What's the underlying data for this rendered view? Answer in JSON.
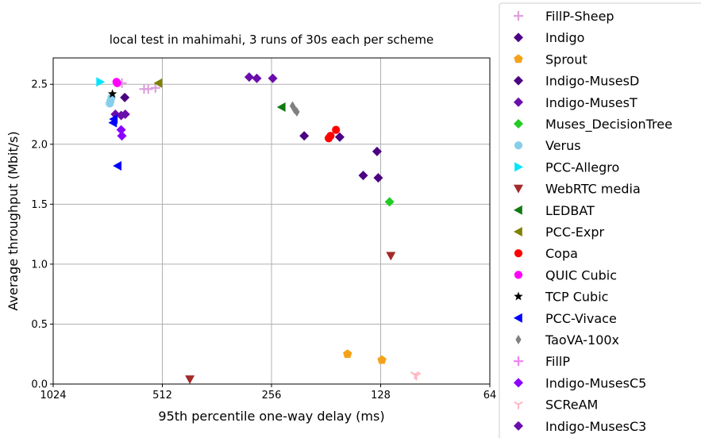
{
  "chart_data": {
    "type": "scatter",
    "title": "local test in mahimahi, 3 runs of 30s each per scheme",
    "xlabel": "95th percentile one-way delay (ms)",
    "ylabel": "Average throughput (Mbit/s)",
    "x_scale": "log2-reversed",
    "xlim": [
      1024,
      64
    ],
    "ylim": [
      0,
      2.72
    ],
    "x_ticks": [
      1024,
      512,
      256,
      128,
      64
    ],
    "x_tick_labels": [
      "1024",
      "512",
      "256",
      "128",
      "64"
    ],
    "y_ticks": [
      0.0,
      0.5,
      1.0,
      1.5,
      2.0,
      2.5
    ],
    "y_tick_labels": [
      "0.0",
      "0.5",
      "1.0",
      "1.5",
      "2.0",
      "2.5"
    ],
    "grid": true,
    "legend_position": "outside-right",
    "series": [
      {
        "name": "FillP-Sheep",
        "color": "#dda0dd",
        "marker": "plus",
        "points": [
          [
            575,
            2.46
          ],
          [
            560,
            2.46
          ],
          [
            535,
            2.47
          ],
          [
            662,
            2.51
          ]
        ]
      },
      {
        "name": "Indigo",
        "color": "#4b0082",
        "marker": "diamond",
        "points": [
          [
            650,
            2.39
          ]
        ]
      },
      {
        "name": "Sprout",
        "color": "#f5a21b",
        "marker": "pentagon",
        "points": [
          [
            158,
            0.25
          ],
          [
            127,
            0.2
          ]
        ]
      },
      {
        "name": "Indigo-MusesD",
        "color": "#4b0082",
        "marker": "diamond",
        "points": [
          [
            208,
            2.07
          ],
          [
            166,
            2.06
          ],
          [
            143,
            1.74
          ],
          [
            131,
            1.94
          ],
          [
            130,
            1.72
          ]
        ]
      },
      {
        "name": "Indigo-MusesT",
        "color": "#6a0dad",
        "marker": "diamond",
        "points": [
          [
            295,
            2.56
          ],
          [
            281,
            2.55
          ],
          [
            254,
            2.55
          ],
          [
            690,
            2.25
          ],
          [
            665,
            2.24
          ],
          [
            648,
            2.25
          ]
        ]
      },
      {
        "name": "Muses_DecisionTree",
        "color": "#22cc22",
        "marker": "diamond",
        "points": [
          [
            121,
            1.52
          ]
        ]
      },
      {
        "name": "Verus",
        "color": "#87ceeb",
        "marker": "circle",
        "points": [
          [
            715,
            2.34
          ],
          [
            712,
            2.36
          ],
          [
            707,
            2.39
          ]
        ]
      },
      {
        "name": "PCC-Allegro",
        "color": "#00e5ff",
        "marker": "triangle-right",
        "points": [
          [
            760,
            2.52
          ]
        ]
      },
      {
        "name": "WebRTC media",
        "color": "#a52a2a",
        "marker": "triangle-down",
        "points": [
          [
            430,
            0.04
          ],
          [
            120,
            1.07
          ]
        ]
      },
      {
        "name": "LEDBAT",
        "color": "#127a12",
        "marker": "triangle-left",
        "points": [
          [
            240,
            2.31
          ]
        ]
      },
      {
        "name": "PCC-Expr",
        "color": "#808000",
        "marker": "triangle-left",
        "points": [
          [
            525,
            2.51
          ]
        ]
      },
      {
        "name": "Copa",
        "color": "#ff0000",
        "marker": "circle",
        "points": [
          [
            178,
            2.05
          ],
          [
            176,
            2.07
          ],
          [
            170,
            2.12
          ]
        ]
      },
      {
        "name": "QUIC Cubic",
        "color": "#ff00ff",
        "marker": "circle",
        "points": [
          [
            685,
            2.52
          ],
          [
            682,
            2.51
          ]
        ]
      },
      {
        "name": "TCP Cubic",
        "color": "#000000",
        "marker": "star",
        "points": [
          [
            703,
            2.42
          ]
        ]
      },
      {
        "name": "PCC-Vivace",
        "color": "#0000ff",
        "marker": "triangle-left",
        "points": [
          [
            700,
            2.18
          ],
          [
            697,
            2.21
          ],
          [
            680,
            1.82
          ]
        ]
      },
      {
        "name": "TaoVA-100x",
        "color": "#808080",
        "marker": "thin-diamond",
        "points": [
          [
            224,
            2.32
          ],
          [
            221,
            2.29
          ],
          [
            218,
            2.27
          ]
        ]
      },
      {
        "name": "FillP",
        "color": "#ee82ee",
        "marker": "plus",
        "points": []
      },
      {
        "name": "Indigo-MusesC5",
        "color": "#8b00ff",
        "marker": "diamond",
        "points": [
          [
            665,
            2.12
          ],
          [
            662,
            2.07
          ]
        ]
      },
      {
        "name": "SCReAM",
        "color": "#ffb6c1",
        "marker": "tri-down",
        "points": [
          [
            103,
            0.08
          ],
          [
            102,
            0.07
          ]
        ]
      },
      {
        "name": "Indigo-MusesC3",
        "color": "#6a0dad",
        "marker": "diamond",
        "points": []
      }
    ]
  }
}
